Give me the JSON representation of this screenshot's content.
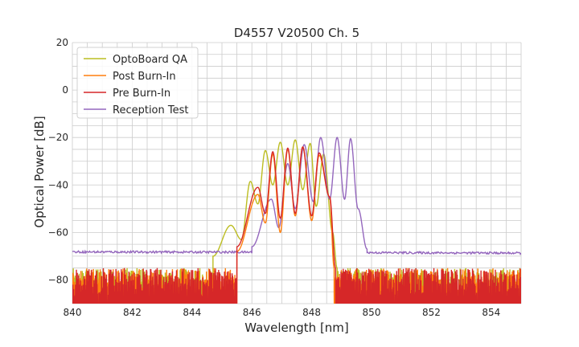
{
  "chart_data": {
    "type": "line",
    "title": "D4557 V20500 Ch. 5",
    "xlabel": "Wavelength [nm]",
    "ylabel": "Optical Power [dB]",
    "xlim": [
      840,
      855
    ],
    "ylim": [
      -90,
      20
    ],
    "xticks": [
      840,
      842,
      844,
      846,
      848,
      850,
      852,
      854
    ],
    "yticks": [
      20,
      0,
      -20,
      -40,
      -60,
      -80
    ],
    "x_minor_step": 0.5,
    "y_minor_step": 5,
    "grid": true,
    "legend_position": "top-left",
    "noise_floor_below": 845.6,
    "noise_floor_above": 849.9,
    "series": [
      {
        "name": "OptoBoard QA",
        "color": "#bcbd22",
        "noise_floor_max": -72,
        "peaks": [
          [
            845.3,
            -57
          ],
          [
            845.95,
            -38.5
          ],
          [
            846.45,
            -25.5
          ],
          [
            846.95,
            -22
          ],
          [
            847.45,
            -21
          ],
          [
            847.95,
            -22.5
          ],
          [
            848.4,
            -27
          ]
        ],
        "dips": [
          [
            845.65,
            -63
          ],
          [
            846.2,
            -48
          ],
          [
            846.7,
            -40
          ],
          [
            847.2,
            -40
          ],
          [
            847.7,
            -42
          ],
          [
            848.15,
            -49
          ]
        ],
        "edges": [
          [
            844.7,
            -70
          ],
          [
            848.7,
            -60
          ],
          [
            848.85,
            -75
          ]
        ]
      },
      {
        "name": "Post Burn-In",
        "color": "#ff7f0e",
        "noise_floor_max": -72,
        "peaks": [
          [
            846.2,
            -44
          ],
          [
            846.7,
            -27
          ],
          [
            847.2,
            -25
          ],
          [
            847.7,
            -24
          ],
          [
            848.25,
            -27.5
          ]
        ],
        "dips": [
          [
            846.45,
            -56
          ],
          [
            846.95,
            -60
          ],
          [
            847.45,
            -53
          ],
          [
            848.0,
            -55
          ]
        ],
        "edges": [
          [
            845.5,
            -68
          ],
          [
            848.6,
            -45
          ],
          [
            848.75,
            -75
          ]
        ]
      },
      {
        "name": "Pre Burn-In",
        "color": "#d62728",
        "noise_floor_max": -72,
        "peaks": [
          [
            846.2,
            -41
          ],
          [
            846.7,
            -26
          ],
          [
            847.2,
            -24.5
          ],
          [
            847.7,
            -24
          ],
          [
            848.25,
            -26.5
          ]
        ],
        "dips": [
          [
            846.45,
            -52
          ],
          [
            846.95,
            -54
          ],
          [
            847.45,
            -52
          ],
          [
            848.0,
            -53
          ]
        ],
        "edges": [
          [
            845.5,
            -66
          ],
          [
            848.6,
            -45
          ],
          [
            848.8,
            -75
          ]
        ]
      },
      {
        "name": "Reception Test",
        "color": "#9467bd",
        "baseline": -68.2,
        "peaks": [
          [
            846.65,
            -46
          ],
          [
            847.2,
            -31
          ],
          [
            847.75,
            -23
          ],
          [
            848.3,
            -20
          ],
          [
            848.85,
            -20
          ],
          [
            849.3,
            -20.5
          ]
        ],
        "dips": [
          [
            846.9,
            -58
          ],
          [
            847.45,
            -50
          ],
          [
            848.05,
            -47
          ],
          [
            848.6,
            -46
          ],
          [
            849.1,
            -46
          ]
        ],
        "edges": [
          [
            846.0,
            -66
          ],
          [
            849.55,
            -50
          ],
          [
            849.85,
            -67
          ]
        ]
      }
    ]
  }
}
